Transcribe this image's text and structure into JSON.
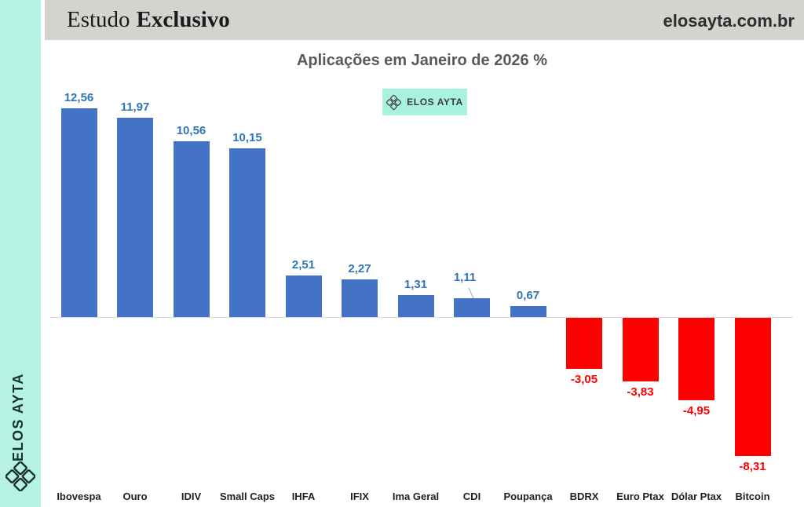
{
  "sidebar": {
    "brand": "ELOS AYTA",
    "bg": "#b5f2e2",
    "logo_icon": "elos-ayta-lattice-logo"
  },
  "header": {
    "title_regular": "Estudo",
    "title_bold": "Exclusivo",
    "site": "elosayta.com.br",
    "bg": "#d5d3d0"
  },
  "legend_badge": {
    "label": "ELOS AYTA",
    "bg": "#a9f2dd",
    "logo_icon": "elos-ayta-lattice-logo"
  },
  "chart_data": {
    "type": "bar",
    "title": "Aplicações em Janeiro de 2026 %",
    "categories": [
      "Ibovespa",
      "Ouro",
      "IDIV",
      "Small Caps",
      "IHFA",
      "IFIX",
      "Ima Geral",
      "CDI",
      "Poupança",
      "BDRX",
      "Euro Ptax",
      "Dólar Ptax",
      "Bitcoin"
    ],
    "values": [
      12.56,
      11.97,
      10.56,
      10.15,
      2.51,
      2.27,
      1.31,
      1.11,
      0.67,
      -3.05,
      -3.83,
      -4.95,
      -8.31
    ],
    "value_labels": [
      "12,56",
      "11,97",
      "10,56",
      "10,15",
      "2,51",
      "2,27",
      "1,31",
      "1,11",
      "0,67",
      "-3,05",
      "-3,83",
      "-4,95",
      "-8,31"
    ],
    "xlabel": "",
    "ylabel": "",
    "ylim": [
      -9,
      13
    ],
    "grid": false,
    "legend_position": "top-center",
    "positive_color": "#4472c4",
    "negative_color": "#ff0000",
    "positive_label_color": "#2e75b6",
    "negative_label_color": "#ff0000",
    "axis_line_color": "#d9d9d9"
  }
}
